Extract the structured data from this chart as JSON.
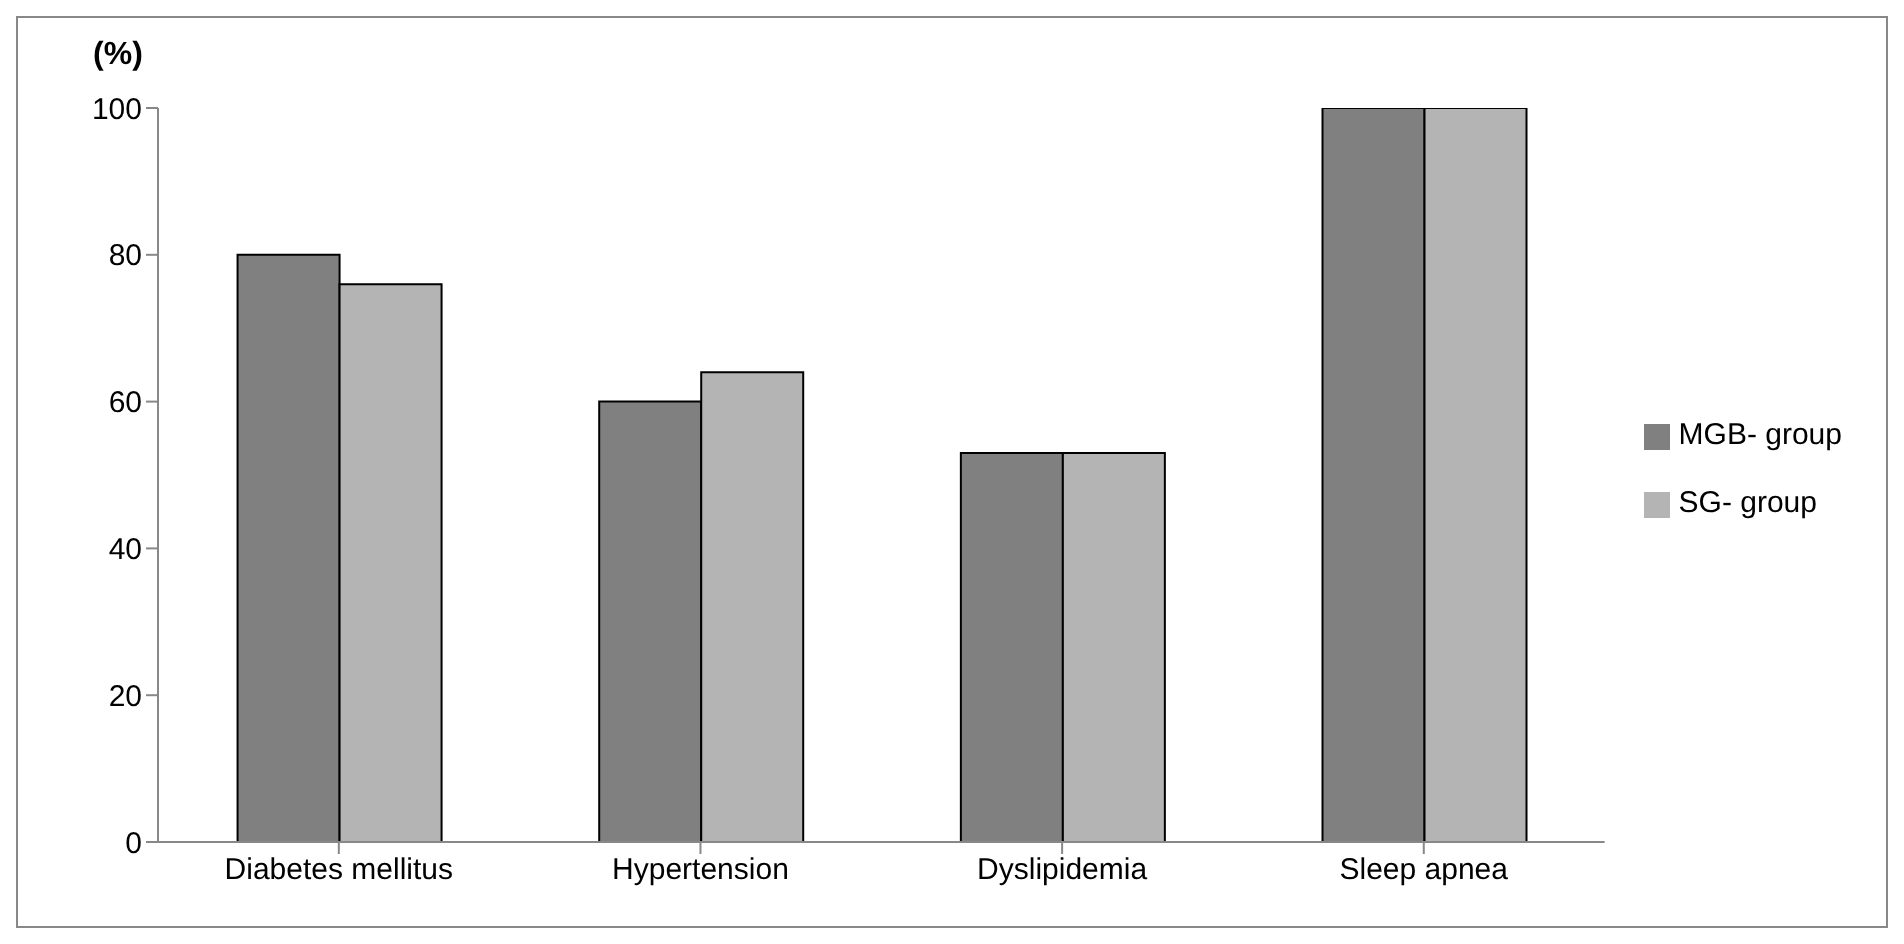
{
  "chart_data": {
    "type": "bar",
    "ylabel": "(%)",
    "categories": [
      "Diabetes mellitus",
      "Hypertension",
      "Dyslipidemia",
      "Sleep apnea"
    ],
    "series": [
      {
        "name": "MGB- group",
        "color": "#808080",
        "values": [
          80,
          60,
          53,
          100
        ]
      },
      {
        "name": "SG- group",
        "color": "#b4b4b4",
        "values": [
          76,
          64,
          53,
          100
        ]
      }
    ],
    "ylim": [
      0,
      100
    ],
    "yticks": [
      0,
      20,
      40,
      60,
      80,
      100
    ],
    "grid": false,
    "legend": "right"
  }
}
